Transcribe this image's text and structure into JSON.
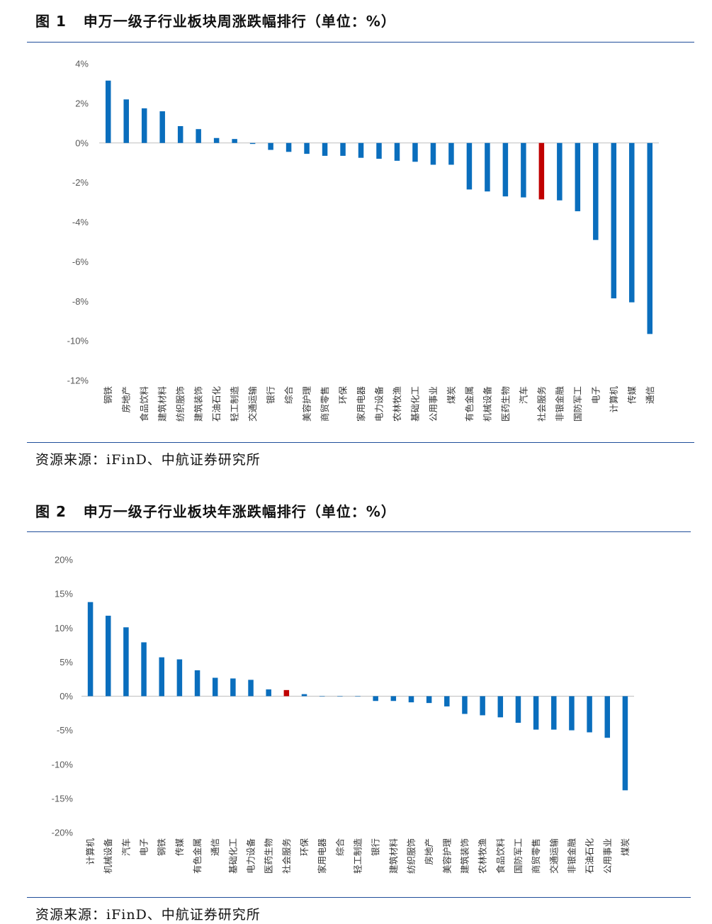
{
  "figure1": {
    "number": "图 1",
    "title": "申万一级子行业板块周涨跌幅排行（单位：%）",
    "source": "资源来源：iFinD、中航证券研究所"
  },
  "figure2": {
    "number": "图 2",
    "title": "申万一级子行业板块年涨跌幅排行（单位：%）",
    "source": "资源来源：iFinD、中航证券研究所"
  },
  "colors": {
    "bar": "#0a6ebd",
    "highlight": "#c00000",
    "axis": "#bfbfbf",
    "rule": "#1f4e9a"
  },
  "chart_data": [
    {
      "type": "bar",
      "title": "申万一级子行业板块周涨跌幅排行（单位：%）",
      "xlabel": "",
      "ylabel": "",
      "ylim": [
        -12,
        4
      ],
      "yticks": [
        4,
        2,
        0,
        -2,
        -4,
        -6,
        -8,
        -10,
        -12
      ],
      "ytick_labels": [
        "4%",
        "2%",
        "0%",
        "-2%",
        "-4%",
        "-6%",
        "-8%",
        "-10%",
        "-12%"
      ],
      "highlight": "社会服务",
      "categories": [
        "钢铁",
        "房地产",
        "食品饮料",
        "建筑材料",
        "纺织服饰",
        "建筑装饰",
        "石油石化",
        "轻工制造",
        "交通运输",
        "银行",
        "综合",
        "美容护理",
        "商贸零售",
        "环保",
        "家用电器",
        "电力设备",
        "农林牧渔",
        "基础化工",
        "公用事业",
        "煤炭",
        "有色金属",
        "机械设备",
        "医药生物",
        "汽车",
        "社会服务",
        "非银金融",
        "国防军工",
        "电子",
        "计算机",
        "传媒",
        "通信"
      ],
      "values": [
        3.15,
        2.2,
        1.75,
        1.6,
        0.85,
        0.7,
        0.25,
        0.2,
        -0.05,
        -0.35,
        -0.45,
        -0.55,
        -0.65,
        -0.65,
        -0.75,
        -0.8,
        -0.9,
        -0.95,
        -1.1,
        -1.1,
        -2.35,
        -2.45,
        -2.7,
        -2.75,
        -2.85,
        -2.9,
        -3.45,
        -4.9,
        -7.85,
        -8.05,
        -9.65
      ]
    },
    {
      "type": "bar",
      "title": "申万一级子行业板块年涨跌幅排行（单位：%）",
      "xlabel": "",
      "ylabel": "",
      "ylim": [
        -20,
        20
      ],
      "yticks": [
        20,
        15,
        10,
        5,
        0,
        -5,
        -10,
        -15,
        -20
      ],
      "ytick_labels": [
        "20%",
        "15%",
        "10%",
        "5%",
        "0%",
        "-5%",
        "-10%",
        "-15%",
        "-20%"
      ],
      "highlight": "社会服务",
      "categories": [
        "计算机",
        "机械设备",
        "汽车",
        "电子",
        "钢铁",
        "传媒",
        "有色金属",
        "通信",
        "基础化工",
        "电力设备",
        "医药生物",
        "社会服务",
        "环保",
        "家用电器",
        "综合",
        "轻工制造",
        "银行",
        "建筑材料",
        "纺织服饰",
        "房地产",
        "美容护理",
        "建筑装饰",
        "农林牧渔",
        "食品饮料",
        "国防军工",
        "商贸零售",
        "交通运输",
        "非银金融",
        "石油石化",
        "公用事业",
        "煤炭"
      ],
      "values": [
        13.8,
        11.8,
        10.1,
        7.9,
        5.7,
        5.4,
        3.8,
        2.7,
        2.6,
        2.4,
        1.0,
        0.9,
        0.3,
        0.0,
        0.0,
        0.0,
        -0.7,
        -0.7,
        -0.9,
        -1.0,
        -1.5,
        -2.6,
        -2.8,
        -3.1,
        -3.9,
        -4.9,
        -4.9,
        -5.0,
        -5.3,
        -6.1,
        -13.8
      ]
    }
  ]
}
